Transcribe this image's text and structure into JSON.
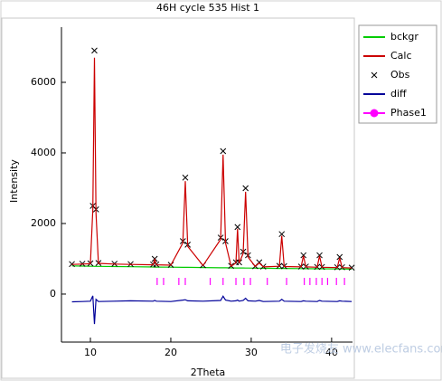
{
  "chart_data": {
    "type": "line",
    "title": "46H cycle 535 Hist 1",
    "x_label": "2Theta",
    "y_label": "Intensity",
    "watermark": "电子发烧友 www.elecfans.com",
    "legend": "upper right",
    "xlim": [
      6.4,
      42.6
    ],
    "ylim": [
      -1360,
      7820
    ],
    "xticks": [
      10,
      20,
      30,
      40
    ],
    "yticks": [
      0,
      2000,
      4000,
      6000
    ],
    "x": [
      7.7,
      9,
      10,
      10.3,
      10.5,
      10.7,
      11,
      13,
      15,
      17.8,
      18,
      18.2,
      20,
      21.5,
      21.8,
      22.1,
      24,
      26.2,
      26.5,
      26.8,
      27.5,
      28.1,
      28.3,
      28.5,
      29.0,
      29.3,
      29.6,
      30.5,
      31,
      31.5,
      33.5,
      33.8,
      34.1,
      36.2,
      36.5,
      36.8,
      38.2,
      38.5,
      38.8,
      40.7,
      41,
      41.3,
      42.5
    ],
    "series": [
      {
        "name": "bckgr",
        "color": "#00cc00",
        "style": "line",
        "values": [
          800,
          795,
          790,
          788,
          787,
          786,
          785,
          780,
          775,
          768,
          767,
          767,
          762,
          758,
          757,
          757,
          752,
          746,
          745,
          745,
          743,
          741,
          740,
          740,
          739,
          738,
          737,
          735,
          734,
          733,
          728,
          727,
          727,
          721,
          720,
          720,
          717,
          716,
          716,
          712,
          711,
          711,
          708
        ]
      },
      {
        "name": "Calc",
        "color": "#cc0000",
        "style": "line",
        "values": [
          840,
          850,
          860,
          2400,
          6700,
          2300,
          870,
          850,
          840,
          830,
          980,
          830,
          820,
          1450,
          3200,
          1350,
          810,
          1550,
          3950,
          1450,
          790,
          880,
          1850,
          880,
          1150,
          2900,
          1050,
          780,
          880,
          770,
          790,
          1650,
          780,
          770,
          1080,
          770,
          760,
          1080,
          760,
          750,
          1030,
          750,
          740
        ]
      },
      {
        "name": "Obs",
        "color": "#000000",
        "style": "marker",
        "values": [
          850,
          860,
          870,
          2500,
          6900,
          2400,
          880,
          860,
          850,
          840,
          1000,
          840,
          830,
          1500,
          3300,
          1400,
          820,
          1600,
          4050,
          1500,
          800,
          900,
          1900,
          900,
          1200,
          3000,
          1100,
          790,
          900,
          780,
          800,
          1700,
          790,
          780,
          1100,
          780,
          770,
          1100,
          770,
          760,
          1050,
          760,
          750
        ]
      },
      {
        "name": "diff",
        "color": "#000099",
        "style": "line",
        "values": [
          -220,
          -210,
          -200,
          -50,
          -850,
          -150,
          -210,
          -200,
          -190,
          -200,
          -180,
          -200,
          -210,
          -170,
          -160,
          -190,
          -200,
          -180,
          -60,
          -170,
          -200,
          -190,
          -170,
          -200,
          -180,
          -120,
          -190,
          -200,
          -180,
          -210,
          -200,
          -150,
          -200,
          -210,
          -190,
          -200,
          -210,
          -180,
          -200,
          -210,
          -190,
          -200,
          -210
        ]
      },
      {
        "name": "Phase1",
        "color": "#ff00ff",
        "style": "reflections",
        "x": [
          18.3,
          19.1,
          21.0,
          21.8,
          24.9,
          26.5,
          28.1,
          29.1,
          29.9,
          32.0,
          34.4,
          36.6,
          37.3,
          38.1,
          38.8,
          39.5,
          40.6,
          41.6
        ]
      }
    ]
  }
}
